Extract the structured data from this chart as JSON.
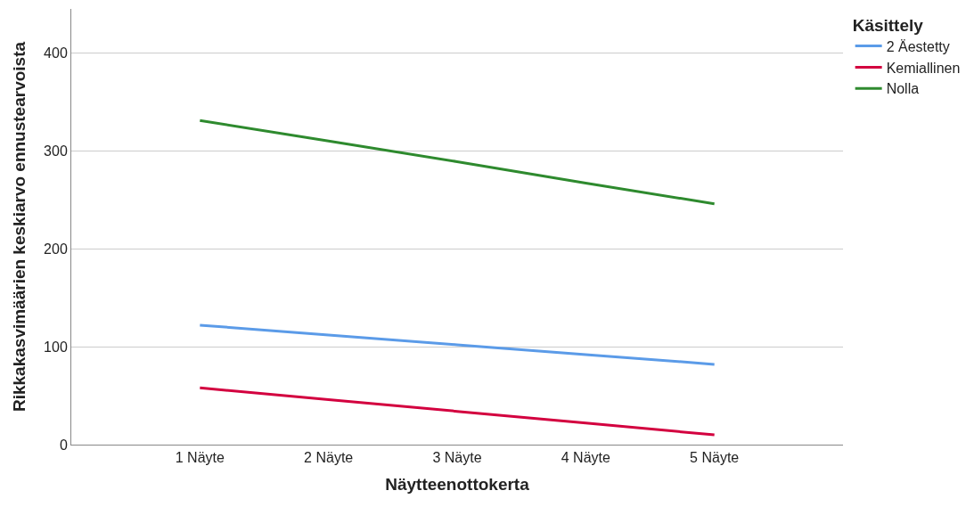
{
  "chart_data": {
    "type": "line",
    "xlabel": "Näytteenottokerta",
    "ylabel": "Rikkakasvimäärien keskiarvo ennustearvoista",
    "legend_title": "Käsittely",
    "categories": [
      "1 Näyte",
      "2 Näyte",
      "3 Näyte",
      "4 Näyte",
      "5 Näyte"
    ],
    "series": [
      {
        "name": "2 Äestetty",
        "color": "#5b9be8",
        "values": [
          122,
          112,
          102,
          92,
          82
        ]
      },
      {
        "name": "Kemiallinen",
        "color": "#d3003f",
        "values": [
          58,
          46,
          34,
          22,
          10
        ]
      },
      {
        "name": "Nolla",
        "color": "#2e8a2e",
        "values": [
          331,
          310,
          289,
          267,
          246
        ]
      }
    ],
    "ylim": [
      0,
      445
    ],
    "yticks": [
      0,
      100,
      200,
      300,
      400
    ],
    "grid": "y",
    "legend": "top right",
    "marker": "none",
    "line_style": "solid"
  }
}
